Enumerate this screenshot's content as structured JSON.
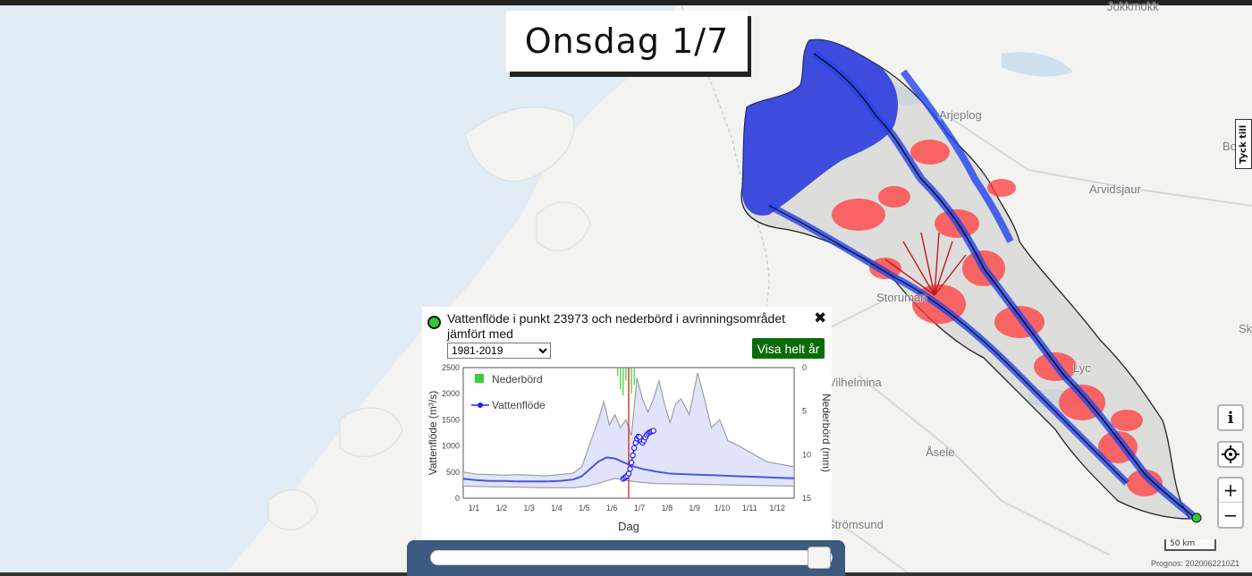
{
  "date_label": "Onsdag 1/7",
  "map": {
    "places": [
      {
        "name": "Jokkmokk",
        "key": "jokkmokk"
      },
      {
        "name": "Arjeplog",
        "key": "arjeplog"
      },
      {
        "name": "Arvidsjaur",
        "key": "arvidsjaur"
      },
      {
        "name": "Storuman",
        "key": "storuman"
      },
      {
        "name": "Vilhelmina",
        "key": "vilhelmina"
      },
      {
        "name": "Åsele",
        "key": "asele"
      },
      {
        "name": "Strömsund",
        "key": "stromsund"
      },
      {
        "name": "Bo",
        "key": "bo"
      },
      {
        "name": "Sk",
        "key": "sk"
      },
      {
        "name": "Lyc",
        "key": "lyc"
      }
    ],
    "feedback_label": "Tyck till",
    "info_icon": "i",
    "locate_icon": "crosshair-icon",
    "zoom_in": "+",
    "zoom_out": "−",
    "scale_label": "50 km",
    "prognos": "Prognos: 2020062210Z1"
  },
  "popup": {
    "title": "Vattenflöde i punkt 23973 och nederbörd i avrinningsområdet jämfört med",
    "period_selected": "1981-2019",
    "full_year_button": "Visa helt år",
    "close": "✖",
    "marker_color": "#2ecc2e"
  },
  "chart_data": {
    "type": "line",
    "xlabel": "Dag",
    "ylabel_left": "Vattenflöde (m³/s)",
    "ylabel_right": "Nederbörd (mm)",
    "x_ticks": [
      "1/1",
      "1/2",
      "1/3",
      "1/4",
      "1/5",
      "1/6",
      "1/7",
      "1/8",
      "1/9",
      "1/10",
      "1/11",
      "1/12"
    ],
    "y_left_ticks": [
      0,
      500,
      1000,
      1500,
      2000,
      2500
    ],
    "y_right_ticks": [
      0,
      5,
      10,
      15
    ],
    "ylim_left": [
      0,
      2500
    ],
    "ylim_right": [
      0,
      15
    ],
    "current_day_marker": "1/7",
    "legend": [
      {
        "name": "Nederbörd",
        "color": "#3ccc3c"
      },
      {
        "name": "Vattenflöde",
        "color": "#1f1fff"
      }
    ],
    "median_flow": {
      "months": [
        0,
        0.5,
        1,
        1.5,
        2,
        2.5,
        3,
        3.5,
        4,
        4.3,
        4.6,
        4.9,
        5.2,
        5.5,
        5.8,
        6.1,
        6.5,
        7,
        7.5,
        8,
        8.5,
        9,
        9.5,
        10,
        10.5,
        11,
        11.5,
        12
      ],
      "values": [
        370,
        345,
        330,
        330,
        320,
        320,
        320,
        330,
        360,
        420,
        560,
        700,
        780,
        760,
        690,
        620,
        560,
        510,
        470,
        460,
        450,
        440,
        430,
        420,
        410,
        400,
        390,
        380
      ]
    },
    "max_flow": {
      "months": [
        0,
        0.5,
        1,
        1.5,
        2,
        2.5,
        3,
        3.5,
        4,
        4.3,
        4.6,
        4.9,
        5.1,
        5.3,
        5.5,
        5.7,
        5.9,
        6.1,
        6.3,
        6.5,
        6.7,
        6.9,
        7.1,
        7.3,
        7.5,
        7.7,
        7.9,
        8.2,
        8.5,
        8.7,
        9,
        9.3,
        9.6,
        10,
        10.5,
        11,
        11.5,
        12
      ],
      "values": [
        500,
        460,
        450,
        440,
        450,
        440,
        430,
        450,
        480,
        600,
        1050,
        1500,
        1850,
        1400,
        1600,
        1350,
        1500,
        1200,
        2300,
        1900,
        1650,
        1900,
        2250,
        1800,
        1450,
        1800,
        1900,
        1600,
        2400,
        2000,
        1350,
        1500,
        1100,
        1000,
        850,
        700,
        650,
        600
      ]
    },
    "min_flow": {
      "months": [
        0,
        1,
        2,
        3,
        4,
        4.5,
        5,
        5.5,
        6,
        6.5,
        7,
        8,
        9,
        10,
        11,
        12
      ],
      "values": [
        230,
        220,
        210,
        200,
        200,
        230,
        300,
        380,
        330,
        300,
        280,
        270,
        260,
        250,
        240,
        230
      ]
    },
    "forecast_flow": {
      "months": [
        5.8,
        5.85,
        5.9,
        5.95,
        6.0,
        6.05,
        6.1,
        6.15,
        6.2,
        6.25,
        6.3,
        6.35,
        6.4,
        6.45,
        6.5,
        6.55,
        6.6,
        6.65,
        6.7,
        6.75,
        6.8,
        6.85,
        6.9
      ],
      "values": [
        370,
        390,
        410,
        430,
        470,
        560,
        680,
        820,
        960,
        1060,
        1140,
        1180,
        1170,
        1090,
        1060,
        1100,
        1160,
        1210,
        1240,
        1260,
        1270,
        1280,
        1290
      ]
    },
    "precip_spikes": {
      "months": [
        5.6,
        5.7,
        5.8,
        5.9,
        6.0,
        6.1,
        6.2
      ],
      "values": [
        1.0,
        2.5,
        3.2,
        1.5,
        4.5,
        3.0,
        2.0
      ]
    }
  }
}
